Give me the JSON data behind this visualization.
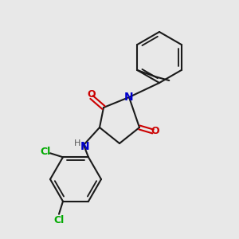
{
  "background_color": "#e8e8e8",
  "bond_color": "#1a1a1a",
  "bond_width": 1.5,
  "atom_colors": {
    "N": "#0000cc",
    "O": "#cc0000",
    "Cl": "#00aa00",
    "H": "#555555",
    "C": "#1a1a1a"
  },
  "font_size": 9,
  "figsize": [
    3.0,
    3.0
  ],
  "dpi": 100
}
